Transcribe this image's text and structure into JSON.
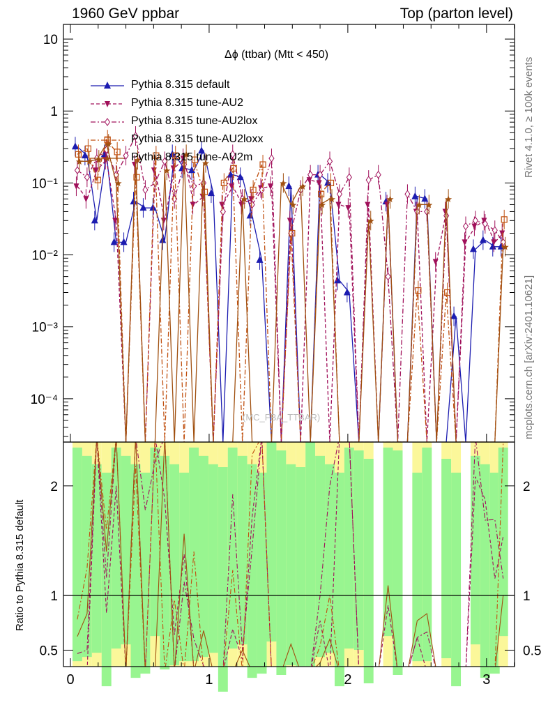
{
  "header": {
    "left": "1960 GeV ppbar",
    "right": "Top (parton level)"
  },
  "side_text": {
    "rivet": "Rivet 4.1.0, ≥ 100k events",
    "mcplots": "mcplots.cern.ch [arXiv:2401.10621]"
  },
  "watermark": "(MC_FBA_TTBAR)",
  "chart_data": {
    "type": "line",
    "title": "Δϕ (ttbar) (Mtt < 450)",
    "xlabel": "",
    "ylabel_main": "",
    "ylabel_ratio": "Ratio to Pythia 8.315 default",
    "xlim": [
      0,
      3.1416
    ],
    "ylim_main": [
      2.5e-05,
      16
    ],
    "ylim_ratio": [
      0.35,
      2.4
    ],
    "yscale_main": "log",
    "x_ticks": [
      "0",
      "1",
      "2",
      "3"
    ],
    "y_ticks_main": [
      "10",
      "1",
      "10⁻¹",
      "10⁻²",
      "10⁻³",
      "10⁻⁴"
    ],
    "y_ticks_ratio": [
      "2",
      "1",
      "0.5"
    ],
    "legend": [
      {
        "name": "Pythia 8.315 default",
        "color": "#1c1cb0",
        "marker": "triangle-up",
        "line": "solid"
      },
      {
        "name": "Pythia 8.315 tune-AU2",
        "color": "#a0105a",
        "marker": "triangle-down",
        "line": "dashed"
      },
      {
        "name": "Pythia 8.315 tune-AU2lox",
        "color": "#a0105a",
        "marker": "diamond-open",
        "line": "dash-dot"
      },
      {
        "name": "Pythia 8.315 tune-AU2loxx",
        "color": "#c05010",
        "marker": "square-open",
        "line": "dash-dot"
      },
      {
        "name": "Pythia 8.315 tune-AU2m",
        "color": "#a05010",
        "marker": "star",
        "line": "solid"
      }
    ],
    "x": [
      0.05,
      0.12,
      0.19,
      0.26,
      0.33,
      0.4,
      0.47,
      0.54,
      0.61,
      0.68,
      0.75,
      0.82,
      0.89,
      0.96,
      1.03,
      1.1,
      1.17,
      1.24,
      1.31,
      1.38,
      1.45,
      1.52,
      1.59,
      1.66,
      1.73,
      1.8,
      1.87,
      1.94,
      2.01,
      2.08,
      2.15,
      2.22,
      2.29,
      2.36,
      2.43,
      2.5,
      2.57,
      2.64,
      2.71,
      2.78,
      2.85,
      2.92,
      2.99,
      3.06,
      3.12
    ],
    "series": [
      {
        "name": "Pythia 8.315 default",
        "values": [
          0.32,
          0.24,
          0.03,
          0.25,
          0.015,
          0.015,
          0.055,
          0.045,
          0.045,
          0.016,
          0.25,
          0.16,
          0.15,
          0.28,
          0.072,
          0.0,
          0.13,
          0.12,
          0.035,
          0.0085,
          0.0,
          0.0,
          0.09,
          0.0,
          0.0,
          0.13,
          0.1,
          0.0044,
          0.003,
          0.0,
          0.0,
          0.0,
          0.055,
          0.0,
          0.0,
          0.065,
          0.06,
          0.0,
          0.0,
          0.0014,
          0.0,
          0.012,
          0.016,
          0.013,
          0.013
        ]
      },
      {
        "name": "Pythia 8.315 tune-AU2",
        "values": [
          0.09,
          0.06,
          0.15,
          0.21,
          0.03,
          0.0,
          0.18,
          0.0,
          0.15,
          0.03,
          0.16,
          0.22,
          0.05,
          0.065,
          0.0,
          0.05,
          0.09,
          0.05,
          0.06,
          0.085,
          0.09,
          0.0,
          0.03,
          0.0,
          0.11,
          0.1,
          0.0,
          0.05,
          0.045,
          0.0,
          0.05,
          0.0,
          0.05,
          0.0,
          0.0,
          0.04,
          0.0,
          0.008,
          0.04,
          0.0,
          0.015,
          0.025,
          0.03,
          0.015,
          0.02
        ]
      },
      {
        "name": "Pythia 8.315 tune-AU2lox",
        "values": [
          0.15,
          0.12,
          0.22,
          0.29,
          0.13,
          0.24,
          0.45,
          0.08,
          0.1,
          0.2,
          0.06,
          0.18,
          0.09,
          0.1,
          0.0,
          0.04,
          0.25,
          0.06,
          0.05,
          0.08,
          0.22,
          0.0,
          0.02,
          0.08,
          0.13,
          0.13,
          0.2,
          0.07,
          0.12,
          0.0,
          0.11,
          0.13,
          0.005,
          0.0,
          0.07,
          0.04,
          0.04,
          0.0,
          0.035,
          0.0,
          0.025,
          0.03,
          0.027,
          0.022,
          0.015
        ]
      },
      {
        "name": "Pythia 8.315 tune-AU2loxx",
        "values": [
          0.25,
          0.3,
          0.11,
          0.4,
          0.27,
          0.0,
          0.12,
          0.0,
          0.24,
          0.0,
          0.24,
          0.0,
          0.21,
          0.075,
          0.0,
          0.1,
          0.16,
          0.0,
          0.08,
          0.18,
          0.0,
          0.0,
          0.02,
          0.0,
          0.0,
          0.07,
          0.1,
          0.0,
          0.0,
          0.0,
          0.0,
          0.0,
          0.0,
          0.0,
          0.0,
          0.0032,
          0.0,
          0.0,
          0.003,
          0.0,
          0.0,
          0.0,
          0.0,
          0.0,
          0.031
        ]
      },
      {
        "name": "Pythia 8.315 tune-AU2m",
        "values": [
          0.2,
          0.2,
          0.21,
          0.35,
          0.1,
          0.0,
          0.21,
          0.0,
          0.0,
          0.15,
          0.0,
          0.25,
          0.0,
          0.19,
          0.0,
          0.0,
          0.0,
          0.06,
          0.0,
          0.0,
          0.0,
          0.1,
          0.05,
          0.09,
          0.0,
          0.05,
          0.06,
          0.0,
          0.0,
          0.0,
          0.03,
          0.0,
          0.06,
          0.0,
          0.0,
          0.05,
          0.05,
          0.0,
          0.06,
          0.0,
          0.0,
          0.0,
          0.0,
          0.0,
          0.013
        ]
      }
    ]
  }
}
